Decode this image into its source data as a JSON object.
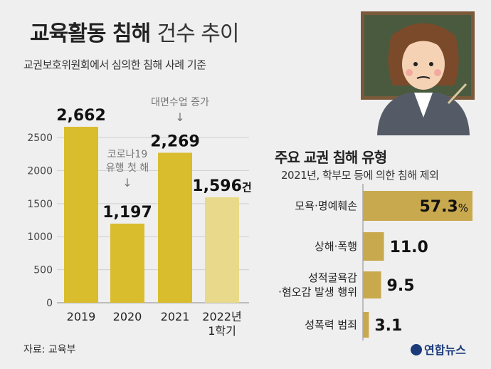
{
  "title_bold": "교육활동 침해",
  "title_light": "건수 추이",
  "subtitle": "교권보호위원회에서 심의한 침해 사례 기준",
  "source": "자료: 교육부",
  "logo": "연합뉴스",
  "colors": {
    "bar": "#d9bd2d",
    "bar_light": "#e8da8a",
    "hbar": "#c8a94e",
    "annotation": "#777777"
  },
  "annotations": {
    "covid_line1": "코로나19",
    "covid_line2": "유행 첫 해",
    "face_to_face": "대면수업 증가",
    "arrow": "↓"
  },
  "chart_data": [
    {
      "type": "bar",
      "categories": [
        "2019",
        "2020",
        "2021",
        "2022년 1학기"
      ],
      "category_lines": [
        [
          "2019"
        ],
        [
          "2020"
        ],
        [
          "2021"
        ],
        [
          "2022년",
          "1학기"
        ]
      ],
      "values": [
        2662,
        1197,
        2269,
        1596
      ],
      "value_labels": [
        "2,662",
        "1,197",
        "2,269",
        "1,596"
      ],
      "value_unit": "건",
      "yticks": [
        0,
        500,
        1000,
        1500,
        2000,
        2500
      ],
      "ylim": [
        0,
        2800
      ],
      "grid": true
    },
    {
      "type": "bar",
      "orientation": "horizontal",
      "title": "주요 교권 침해 유형",
      "subtitle": "2021년, 학부모 등에 의한 침해 제외",
      "categories": [
        "모욕·명예훼손",
        "상해·폭행",
        "성적굴욕감·혐오감 발생 행위",
        "성폭력 범죄"
      ],
      "category_lines": [
        [
          "모욕·명예훼손"
        ],
        [
          "상해·폭행"
        ],
        [
          "성적굴욕감",
          "·혐오감 발생 행위"
        ],
        [
          "성폭력 범죄"
        ]
      ],
      "values": [
        57.3,
        11.0,
        9.5,
        3.1
      ],
      "value_labels": [
        "57.3",
        "11.0",
        "9.5",
        "3.1"
      ],
      "value_unit": "%",
      "xlim": [
        0,
        57.3
      ]
    }
  ]
}
